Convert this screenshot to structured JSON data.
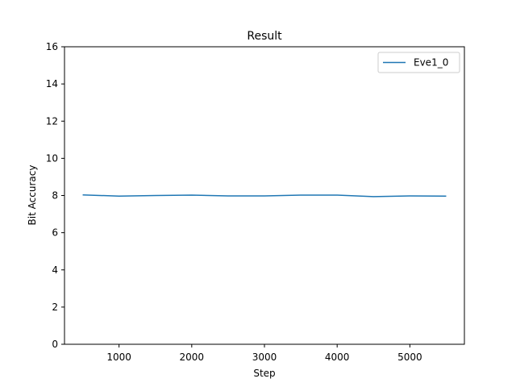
{
  "chart_data": {
    "type": "line",
    "title": "Result",
    "xlabel": "Step",
    "ylabel": "Bit Accuracy",
    "xlim": [
      250,
      5750
    ],
    "ylim": [
      0,
      16
    ],
    "xticks": [
      1000,
      2000,
      3000,
      4000,
      5000
    ],
    "yticks": [
      0,
      2,
      4,
      6,
      8,
      10,
      12,
      14,
      16
    ],
    "grid": false,
    "legend": "top-right",
    "series": [
      {
        "name": "Eve1_0",
        "color": "#1f77b4",
        "x": [
          500,
          1000,
          1500,
          2000,
          2500,
          3000,
          3500,
          4000,
          4500,
          5000,
          5500
        ],
        "y": [
          8.03,
          7.97,
          8.0,
          8.02,
          7.98,
          7.98,
          8.02,
          8.02,
          7.94,
          7.98,
          7.97
        ]
      }
    ]
  }
}
